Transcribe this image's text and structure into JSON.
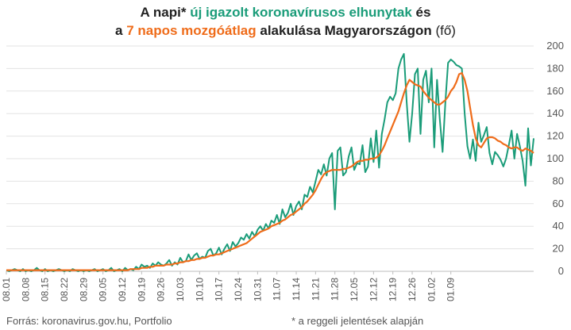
{
  "title": {
    "line1_a": "A napi* ",
    "line1_green": "új igazolt koronavírusos elhunytak",
    "line1_b": " és",
    "line2_a": "a ",
    "line2_orange": "7 napos mozgóátlag",
    "line2_b": " alakulása Magyarországon",
    "line2_unit": " (fő)"
  },
  "footer": {
    "source": "Forrás: koronavirus.gov.hu, Portfolio",
    "note": "* a reggeli jelentések alapján"
  },
  "colors": {
    "daily": "#1a9c79",
    "average": "#ef6c1a",
    "grid": "#e3e3e3",
    "text": "#555555"
  },
  "chart_data": {
    "type": "line",
    "title": "A napi* új igazolt koronavírusos elhunytak és a 7 napos mozgóátlag alakulása Magyarországon (fő)",
    "ylim": [
      0,
      200
    ],
    "yticks": [
      0,
      20,
      40,
      60,
      80,
      100,
      120,
      140,
      160,
      180,
      200
    ],
    "y_axis_position": "right",
    "grid": "horizontal",
    "x_tick_labels": [
      "08.01",
      "08.08",
      "08.15",
      "08.22",
      "08.29",
      "09.05",
      "09.12",
      "09.19",
      "09.26",
      "10.03",
      "10.10",
      "10.17",
      "10.24",
      "10.31",
      "11.07",
      "11.14",
      "11.21",
      "11.28",
      "12.05",
      "12.12",
      "12.19",
      "12.26",
      "01.02",
      "01.09"
    ],
    "series": [
      {
        "name": "új igazolt koronavírusos elhunytak",
        "values": [
          1,
          0,
          1,
          2,
          1,
          0,
          2,
          0,
          1,
          0,
          1,
          3,
          1,
          0,
          2,
          0,
          1,
          0,
          1,
          2,
          1,
          0,
          1,
          0,
          2,
          1,
          0,
          1,
          0,
          1,
          0,
          1,
          2,
          0,
          1,
          2,
          0,
          1,
          3,
          0,
          1,
          2,
          0,
          3,
          1,
          2,
          1,
          4,
          2,
          6,
          4,
          5,
          3,
          7,
          5,
          8,
          6,
          5,
          7,
          10,
          5,
          8,
          6,
          12,
          8,
          9,
          15,
          10,
          14,
          16,
          11,
          13,
          12,
          18,
          20,
          14,
          16,
          21,
          15,
          20,
          24,
          18,
          26,
          22,
          25,
          30,
          28,
          33,
          29,
          35,
          31,
          37,
          40,
          36,
          42,
          38,
          45,
          43,
          50,
          42,
          55,
          48,
          52,
          60,
          50,
          58,
          62,
          55,
          68,
          66,
          75,
          70,
          80,
          90,
          86,
          95,
          85,
          100,
          105,
          55,
          107,
          110,
          85,
          88,
          102,
          110,
          90,
          96,
          95,
          112,
          88,
          93,
          118,
          97,
          125,
          92,
          122,
          135,
          150,
          155,
          152,
          158,
          180,
          188,
          193,
          150,
          115,
          140,
          175,
          180,
          122,
          170,
          178,
          150,
          180,
          110,
          170,
          135,
          106,
          150,
          185,
          188,
          186,
          183,
          182,
          180,
          140,
          111,
          100,
          117,
          98,
          132,
          115,
          121,
          128,
          105,
          95,
          106,
          103,
          99,
          93,
          100,
          112,
          125,
          100,
          122,
          111,
          98,
          76,
          127,
          94,
          118
        ],
        "color": "#1a9c79"
      },
      {
        "name": "7 napos mozgóátlag",
        "values": [
          1,
          1,
          1,
          1,
          1,
          1,
          1,
          1,
          1,
          1,
          1,
          1,
          1,
          1,
          1,
          1,
          1,
          1,
          1,
          1,
          1,
          1,
          1,
          1,
          1,
          1,
          1,
          1,
          1,
          1,
          1,
          1,
          1,
          1,
          1,
          1,
          1,
          1,
          1,
          1,
          1,
          1,
          1,
          1,
          1,
          2,
          2,
          2,
          2,
          3,
          3,
          3,
          4,
          4,
          5,
          5,
          5,
          5,
          6,
          6,
          6,
          7,
          7,
          8,
          8,
          9,
          9,
          10,
          10,
          11,
          11,
          12,
          12,
          13,
          14,
          14,
          15,
          15,
          16,
          17,
          18,
          19,
          20,
          21,
          22,
          23,
          24,
          25,
          27,
          29,
          31,
          33,
          35,
          36,
          37,
          38,
          40,
          41,
          42,
          43,
          45,
          46,
          48,
          50,
          51,
          53,
          55,
          57,
          60,
          62,
          65,
          68,
          72,
          77,
          82,
          86,
          88,
          89,
          90,
          90,
          90,
          90,
          91,
          91,
          92,
          93,
          95,
          97,
          98,
          98,
          99,
          99,
          100,
          100,
          101,
          103,
          107,
          112,
          118,
          124,
          130,
          136,
          142,
          150,
          158,
          165,
          170,
          168,
          166,
          165,
          164,
          160,
          157,
          154,
          152,
          150,
          148,
          148,
          150,
          152,
          155,
          160,
          163,
          168,
          175,
          176,
          170,
          160,
          145,
          130,
          118,
          112,
          110,
          114,
          118,
          119,
          119,
          118,
          116,
          115,
          113,
          112,
          110,
          109,
          110,
          110,
          108,
          107,
          109,
          108,
          107,
          105
        ]
      }
    ]
  }
}
